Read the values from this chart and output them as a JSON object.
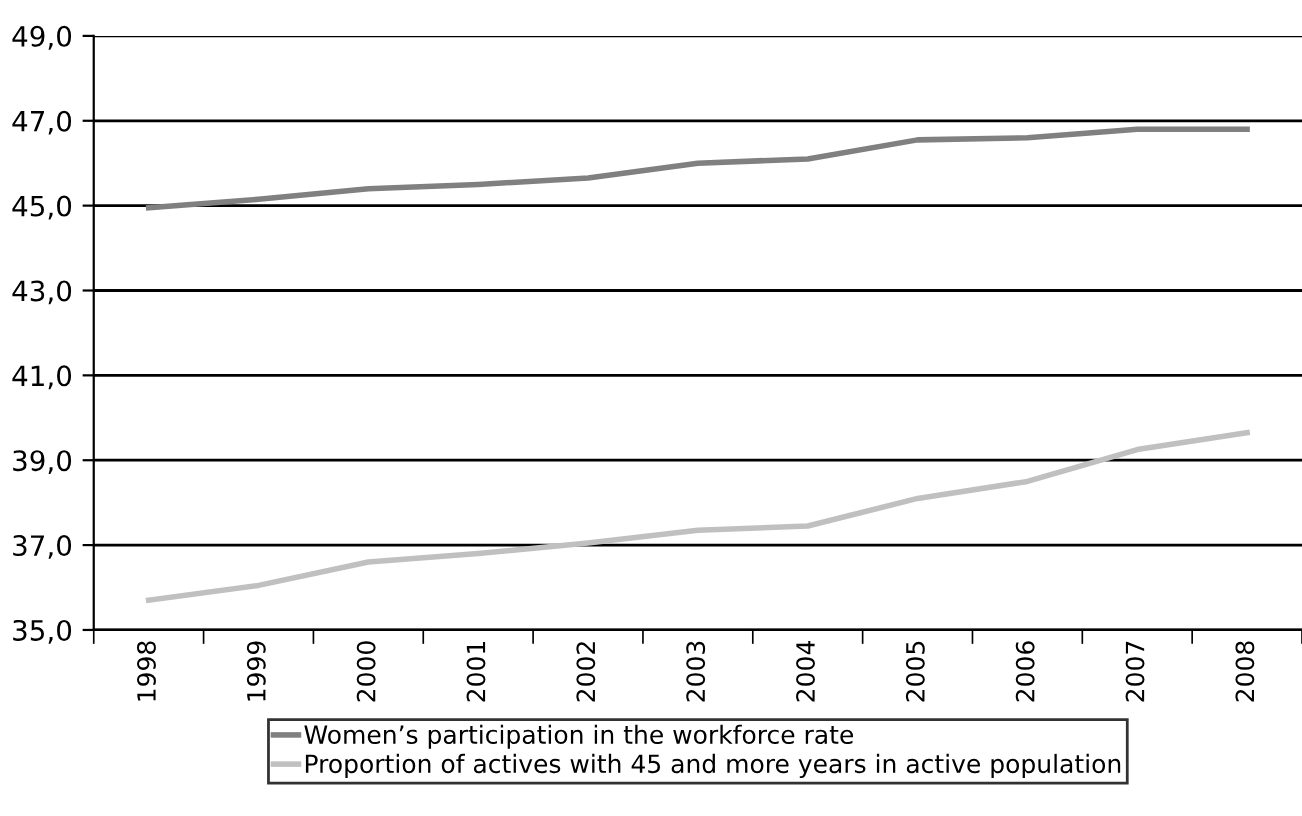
{
  "chart_data": {
    "type": "line",
    "categories": [
      "1998",
      "1999",
      "2000",
      "2001",
      "2002",
      "2003",
      "2004",
      "2005",
      "2006",
      "2007",
      "2008"
    ],
    "series": [
      {
        "name": "Women’s participation in the workforce rate",
        "color": "#808080",
        "values": [
          44.95,
          45.15,
          45.4,
          45.5,
          45.65,
          46.0,
          46.1,
          46.55,
          46.6,
          46.8,
          46.8
        ]
      },
      {
        "name": "Proportion of actives with 45 and more years in active population",
        "color": "#c0c0c0",
        "values": [
          35.7,
          36.05,
          36.6,
          36.8,
          37.05,
          37.35,
          37.45,
          38.1,
          38.5,
          39.25,
          39.65
        ]
      }
    ],
    "ylim": [
      35,
      49
    ],
    "yticks": [
      {
        "value": 35,
        "label": "35,0"
      },
      {
        "value": 37,
        "label": "37,0"
      },
      {
        "value": 39,
        "label": "39,0"
      },
      {
        "value": 41,
        "label": "41,0"
      },
      {
        "value": 43,
        "label": "43,0"
      },
      {
        "value": 45,
        "label": "45,0"
      },
      {
        "value": 47,
        "label": "47,0"
      },
      {
        "value": 49,
        "label": "49,0"
      }
    ],
    "grid": "y",
    "legend": "bottom",
    "marker": "none",
    "line_style": "solid"
  }
}
